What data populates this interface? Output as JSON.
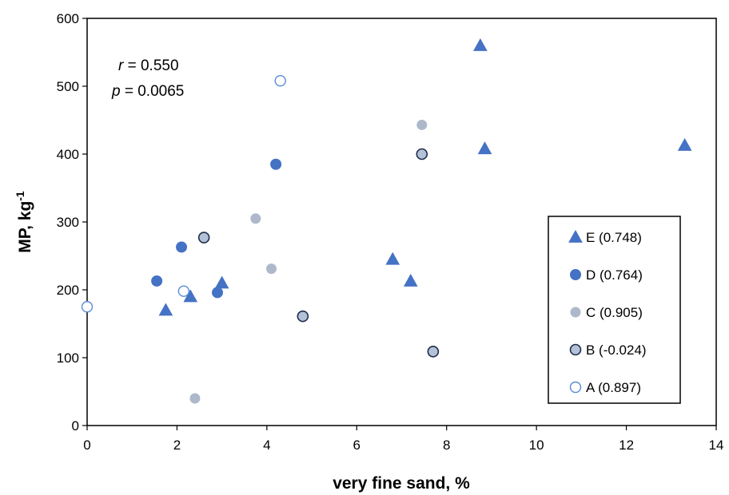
{
  "chart_data": {
    "type": "scatter",
    "title": "",
    "xlabel": "very fine sand, %",
    "ylabel_main": "MP, kg",
    "ylabel_sup": "-1",
    "xlim": [
      0,
      14
    ],
    "ylim": [
      0,
      600
    ],
    "xticks": [
      "0",
      "2",
      "4",
      "6",
      "8",
      "10",
      "12",
      "14"
    ],
    "yticks": [
      "0",
      "100",
      "200",
      "300",
      "400",
      "500",
      "600"
    ],
    "grid": false,
    "legend_position": "right",
    "annotations": {
      "r_symbol": "r",
      "r_text": " = 0.550",
      "p_symbol": "p",
      "p_text": " = 0.0065"
    },
    "series": [
      {
        "name": "E (0.748)",
        "marker": "triangle",
        "color": "#4472c4",
        "points": [
          [
            1.75,
            170
          ],
          [
            2.3,
            190
          ],
          [
            3.0,
            210
          ],
          [
            6.8,
            245
          ],
          [
            7.2,
            213
          ],
          [
            8.75,
            560
          ],
          [
            8.85,
            408
          ],
          [
            13.3,
            413
          ]
        ]
      },
      {
        "name": "D (0.764)",
        "marker": "circle-filled",
        "color": "#4472c4",
        "points": [
          [
            1.55,
            213
          ],
          [
            2.1,
            263
          ],
          [
            2.9,
            196
          ],
          [
            4.2,
            385
          ]
        ]
      },
      {
        "name": "C (0.905)",
        "marker": "circle-gray",
        "color": "#adb9ca",
        "points": [
          [
            2.4,
            40
          ],
          [
            3.75,
            305
          ],
          [
            4.1,
            231
          ],
          [
            7.45,
            443
          ]
        ]
      },
      {
        "name": "B (-0.024)",
        "marker": "circle-dark-outline",
        "color": "#b4c2d8",
        "points": [
          [
            2.6,
            277
          ],
          [
            4.8,
            161
          ],
          [
            7.45,
            400
          ],
          [
            7.7,
            109
          ]
        ]
      },
      {
        "name": "A (0.897)",
        "marker": "circle-open",
        "color": "#5b8bd6",
        "points": [
          [
            0.0,
            175
          ],
          [
            2.15,
            198
          ],
          [
            4.3,
            508
          ]
        ]
      }
    ]
  }
}
